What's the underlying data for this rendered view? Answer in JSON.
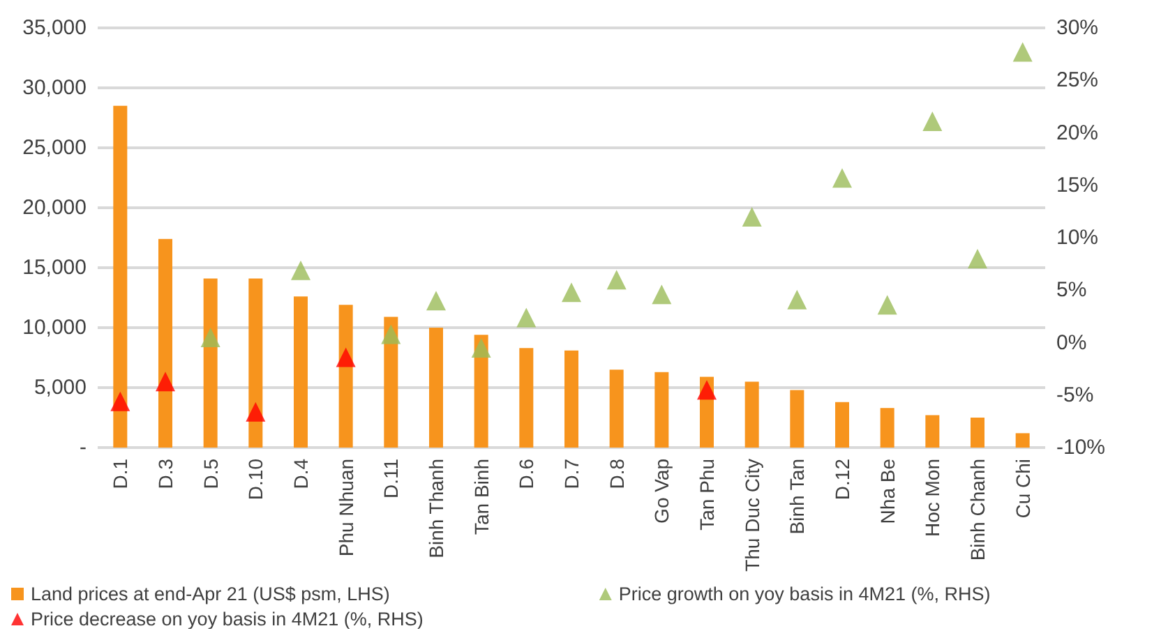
{
  "chart_data": {
    "type": "bar",
    "categories": [
      "D.1",
      "D.3",
      "D.5",
      "D.10",
      "D.4",
      "Phu Nhuan",
      "D.11",
      "Binh Thanh",
      "Tan Binh",
      "D.6",
      "D.7",
      "D.8",
      "Go Vap",
      "Tan Phu",
      "Thu Duc City",
      "Binh Tan",
      "D.12",
      "Nha Be",
      "Hoc Mon",
      "Binh Chanh",
      "Cu Chi"
    ],
    "series": [
      {
        "name": "Land prices at end-Apr 21 (US$ psm, LHS)",
        "color": "#f7941d",
        "values": [
          28500,
          17400,
          14100,
          14100,
          12600,
          11900,
          10900,
          10000,
          9400,
          8300,
          8100,
          6500,
          6300,
          5900,
          5500,
          4800,
          3800,
          3300,
          2700,
          2500,
          1200
        ]
      },
      {
        "name": "Price growth on yoy basis in 4M21 (%, RHS)",
        "type": "scatter",
        "axis": "y2",
        "marker": "triangle",
        "color": "#9bbb59",
        "values": [
          null,
          null,
          0.5,
          null,
          6.9,
          null,
          0.8,
          4.0,
          -0.5,
          2.4,
          4.8,
          6.0,
          4.6,
          null,
          12.0,
          4.1,
          15.7,
          3.6,
          21.1,
          8.0,
          27.7
        ]
      },
      {
        "name": "Price decrease on yoy basis in 4M21 (%, RHS)",
        "type": "scatter",
        "axis": "y2",
        "marker": "triangle",
        "color": "#ff0000",
        "values": [
          -5.6,
          -3.7,
          null,
          -6.6,
          null,
          -1.4,
          null,
          null,
          null,
          null,
          null,
          null,
          null,
          -4.5,
          null,
          null,
          null,
          null,
          null,
          null,
          null
        ]
      }
    ],
    "ylim": [
      0,
      35000
    ],
    "yticks": [
      {
        "value": 0,
        "label": "-"
      },
      {
        "value": 5000,
        "label": "5,000"
      },
      {
        "value": 10000,
        "label": "10,000"
      },
      {
        "value": 15000,
        "label": "15,000"
      },
      {
        "value": 20000,
        "label": "20,000"
      },
      {
        "value": 25000,
        "label": "25,000"
      },
      {
        "value": 30000,
        "label": "30,000"
      },
      {
        "value": 35000,
        "label": "35,000"
      }
    ],
    "y2lim": [
      -10,
      30
    ],
    "y2ticks": [
      {
        "value": -10,
        "label": "-10%"
      },
      {
        "value": -5,
        "label": "-5%"
      },
      {
        "value": 0,
        "label": "0%"
      },
      {
        "value": 5,
        "label": "5%"
      },
      {
        "value": 10,
        "label": "10%"
      },
      {
        "value": 15,
        "label": "15%"
      },
      {
        "value": 20,
        "label": "20%"
      },
      {
        "value": 25,
        "label": "25%"
      },
      {
        "value": 30,
        "label": "30%"
      }
    ],
    "grid": "y",
    "legend": "bottom"
  }
}
